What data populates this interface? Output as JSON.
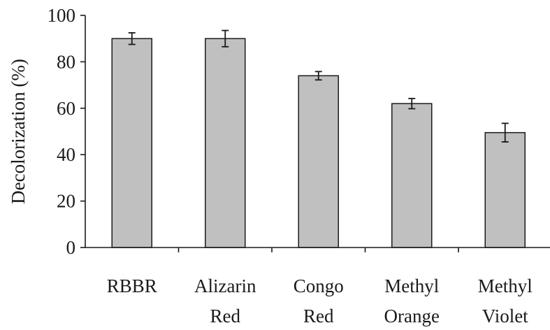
{
  "chart_data": {
    "type": "bar",
    "title": "",
    "xlabel": "",
    "ylabel": "Decolorization (%)",
    "ylim": [
      0,
      100
    ],
    "yticks": [
      0,
      20,
      40,
      60,
      80,
      100
    ],
    "grid": false,
    "legend": "none",
    "categories": [
      [
        "RBBR"
      ],
      [
        "Alizarin",
        "Red"
      ],
      [
        "Congo",
        "Red"
      ],
      [
        "Methyl",
        "Orange"
      ],
      [
        "Methyl",
        "Violet"
      ]
    ],
    "values": [
      90,
      90,
      74,
      62,
      49.5
    ],
    "error": [
      2.5,
      3.5,
      1.8,
      2.2,
      4
    ],
    "bar_color": "#c0c0c0",
    "axis_color": "#1a1a1a"
  }
}
